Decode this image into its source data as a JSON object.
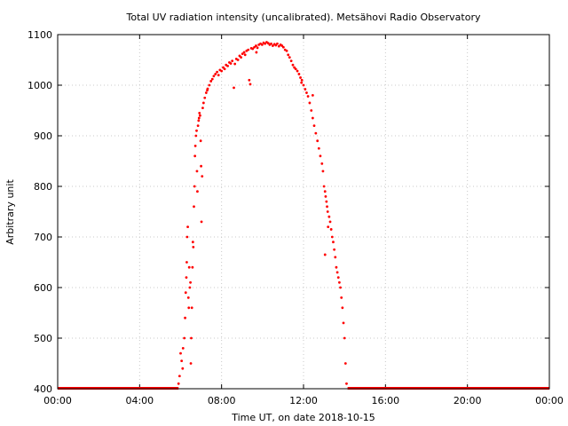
{
  "chart_data": {
    "type": "scatter",
    "title": "Total UV radiation intensity (uncalibrated). Metsähovi Radio Observatory",
    "xlabel": "Time UT, on date 2018-10-15",
    "ylabel": "Arbitrary unit",
    "xlim_hours": [
      0,
      24
    ],
    "ylim": [
      400,
      1100
    ],
    "x_ticks": [
      {
        "hours": 0,
        "label": "00:00"
      },
      {
        "hours": 4,
        "label": "04:00"
      },
      {
        "hours": 8,
        "label": "08:00"
      },
      {
        "hours": 12,
        "label": "12:00"
      },
      {
        "hours": 16,
        "label": "16:00"
      },
      {
        "hours": 20,
        "label": "20:00"
      },
      {
        "hours": 24,
        "label": "00:00"
      }
    ],
    "y_ticks": [
      400,
      500,
      600,
      700,
      800,
      900,
      1000,
      1100
    ],
    "grid": true,
    "marker_color": "#ff0000",
    "series": [
      {
        "points": [
          [
            5.9,
            410
          ],
          [
            5.95,
            425
          ],
          [
            6.0,
            470
          ],
          [
            6.05,
            455
          ],
          [
            6.1,
            440
          ],
          [
            6.12,
            480
          ],
          [
            6.18,
            500
          ],
          [
            6.22,
            540
          ],
          [
            6.25,
            590
          ],
          [
            6.28,
            620
          ],
          [
            6.3,
            650
          ],
          [
            6.32,
            700
          ],
          [
            6.35,
            720
          ],
          [
            6.38,
            580
          ],
          [
            6.4,
            560
          ],
          [
            6.42,
            640
          ],
          [
            6.45,
            600
          ],
          [
            6.48,
            610
          ],
          [
            6.5,
            450
          ],
          [
            6.52,
            500
          ],
          [
            6.55,
            560
          ],
          [
            6.58,
            640
          ],
          [
            6.6,
            690
          ],
          [
            6.62,
            680
          ],
          [
            6.65,
            760
          ],
          [
            6.68,
            800
          ],
          [
            6.7,
            860
          ],
          [
            6.72,
            880
          ],
          [
            6.75,
            900
          ],
          [
            6.78,
            910
          ],
          [
            6.8,
            830
          ],
          [
            6.82,
            790
          ],
          [
            6.85,
            920
          ],
          [
            6.88,
            930
          ],
          [
            6.9,
            935
          ],
          [
            6.92,
            945
          ],
          [
            6.95,
            940
          ],
          [
            6.98,
            890
          ],
          [
            7.0,
            840
          ],
          [
            7.02,
            730
          ],
          [
            7.05,
            820
          ],
          [
            7.08,
            955
          ],
          [
            7.12,
            965
          ],
          [
            7.18,
            975
          ],
          [
            7.25,
            985
          ],
          [
            7.32,
            993
          ],
          [
            7.4,
            1000
          ],
          [
            7.48,
            1008
          ],
          [
            7.55,
            1012
          ],
          [
            7.62,
            1018
          ],
          [
            7.7,
            1022
          ],
          [
            7.78,
            1026
          ],
          [
            7.85,
            1020
          ],
          [
            7.92,
            1030
          ],
          [
            8.0,
            1028
          ],
          [
            8.08,
            1035
          ],
          [
            8.15,
            1032
          ],
          [
            8.22,
            1040
          ],
          [
            8.3,
            1038
          ],
          [
            8.38,
            1045
          ],
          [
            8.45,
            1043
          ],
          [
            8.52,
            1048
          ],
          [
            8.6,
            995
          ],
          [
            8.65,
            1042
          ],
          [
            8.72,
            1052
          ],
          [
            8.8,
            1050
          ],
          [
            8.88,
            1058
          ],
          [
            8.95,
            1055
          ],
          [
            9.02,
            1062
          ],
          [
            9.1,
            1065
          ],
          [
            9.15,
            1060
          ],
          [
            9.22,
            1068
          ],
          [
            9.3,
            1070
          ],
          [
            9.35,
            1010
          ],
          [
            9.4,
            1002
          ],
          [
            9.45,
            1073
          ],
          [
            9.52,
            1072
          ],
          [
            9.6,
            1075
          ],
          [
            9.68,
            1078
          ],
          [
            9.75,
            1074
          ],
          [
            9.82,
            1080
          ],
          [
            9.9,
            1082
          ],
          [
            9.98,
            1080
          ],
          [
            10.05,
            1084
          ],
          [
            10.12,
            1082
          ],
          [
            10.2,
            1085
          ],
          [
            10.28,
            1083
          ],
          [
            10.35,
            1080
          ],
          [
            10.42,
            1082
          ],
          [
            10.5,
            1078
          ],
          [
            10.58,
            1081
          ],
          [
            10.65,
            1079
          ],
          [
            10.72,
            1082
          ],
          [
            10.8,
            1077
          ],
          [
            10.88,
            1080
          ],
          [
            10.95,
            1078
          ],
          [
            11.02,
            1075
          ],
          [
            11.1,
            1070
          ],
          [
            11.18,
            1068
          ],
          [
            11.25,
            1060
          ],
          [
            11.32,
            1055
          ],
          [
            11.4,
            1048
          ],
          [
            11.48,
            1040
          ],
          [
            11.55,
            1035
          ],
          [
            11.62,
            1032
          ],
          [
            11.7,
            1028
          ],
          [
            11.78,
            1022
          ],
          [
            11.85,
            1015
          ],
          [
            11.92,
            1010
          ],
          [
            12.0,
            1000
          ],
          [
            12.08,
            992
          ],
          [
            12.15,
            985
          ],
          [
            12.22,
            978
          ],
          [
            12.3,
            965
          ],
          [
            12.38,
            950
          ],
          [
            12.45,
            935
          ],
          [
            12.52,
            920
          ],
          [
            12.6,
            905
          ],
          [
            12.68,
            890
          ],
          [
            12.75,
            875
          ],
          [
            12.82,
            860
          ],
          [
            12.9,
            845
          ],
          [
            12.95,
            830
          ],
          [
            13.0,
            800
          ],
          [
            13.05,
            790
          ],
          [
            13.08,
            780
          ],
          [
            13.12,
            770
          ],
          [
            13.15,
            760
          ],
          [
            13.18,
            750
          ],
          [
            13.2,
            720
          ],
          [
            13.25,
            740
          ],
          [
            13.3,
            730
          ],
          [
            13.35,
            715
          ],
          [
            13.4,
            700
          ],
          [
            13.45,
            690
          ],
          [
            13.5,
            675
          ],
          [
            13.55,
            660
          ],
          [
            13.6,
            640
          ],
          [
            13.65,
            630
          ],
          [
            13.7,
            620
          ],
          [
            13.75,
            610
          ],
          [
            13.8,
            600
          ],
          [
            13.85,
            580
          ],
          [
            13.9,
            560
          ],
          [
            13.95,
            530
          ],
          [
            14.0,
            500
          ],
          [
            14.05,
            450
          ],
          [
            14.1,
            410
          ],
          [
            13.05,
            665
          ],
          [
            12.45,
            980
          ],
          [
            11.9,
            1005
          ],
          [
            7.3,
            990
          ],
          [
            9.7,
            1065
          ]
        ]
      }
    ]
  }
}
